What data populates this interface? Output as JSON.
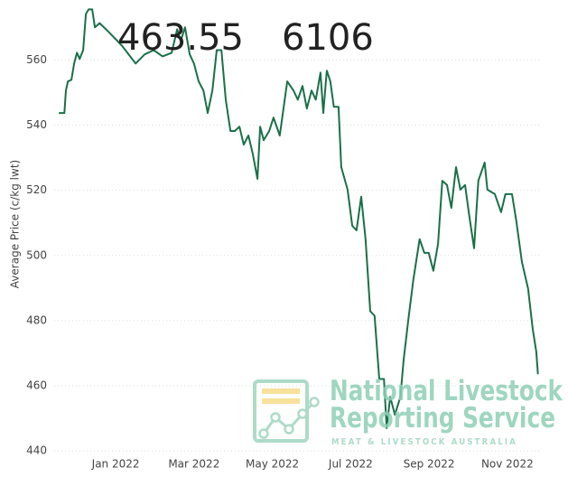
{
  "chart_data": {
    "type": "line",
    "y_label": "Average Price (c/kg lwt)",
    "annotations": [
      "463.55",
      "6106"
    ],
    "logo": {
      "title_line1": "National Livestock",
      "title_line2": "Reporting Service",
      "subtitle": "MEAT & LIVESTOCK AUSTRALIA"
    },
    "x": [
      -0.45,
      -0.31,
      -0.27,
      -0.22,
      -0.13,
      -0.06,
      0.01,
      0.08,
      0.17,
      0.24,
      0.31,
      0.4,
      0.47,
      0.59,
      0.82,
      1.16,
      1.51,
      1.74,
      1.97,
      2.2,
      2.43,
      2.57,
      2.66,
      2.77,
      2.89,
      3.0,
      3.12,
      3.24,
      3.35,
      3.47,
      3.58,
      3.7,
      3.81,
      3.93,
      4.04,
      4.16,
      4.27,
      4.39,
      4.5,
      4.62,
      4.69,
      4.78,
      4.92,
      5.03,
      5.19,
      5.38,
      5.54,
      5.65,
      5.77,
      5.88,
      6.0,
      6.11,
      6.23,
      6.3,
      6.39,
      6.48,
      6.57,
      6.69,
      6.76,
      6.92,
      7.04,
      7.15,
      7.27,
      7.38,
      7.5,
      7.61,
      7.73,
      7.85,
      7.92,
      8.01,
      8.13,
      8.27,
      8.35,
      8.47,
      8.6,
      8.76,
      8.88,
      8.99,
      9.11,
      9.23,
      9.34,
      9.46,
      9.57,
      9.69,
      9.8,
      9.92,
      10.03,
      10.15,
      10.26,
      10.42,
      10.49,
      10.68,
      10.84,
      10.95,
      11.12,
      11.23,
      11.37,
      11.53,
      11.65,
      11.74,
      11.78
    ],
    "series": [
      {
        "color": "#1a7048",
        "values": [
          543.7,
          543.7,
          550.6,
          553.4,
          553.9,
          558.9,
          562.2,
          560.3,
          563.0,
          574.1,
          575.5,
          575.5,
          570.0,
          571.3,
          568.6,
          564.4,
          558.9,
          561.7,
          563.0,
          561.1,
          562.2,
          569.4,
          565.8,
          570.0,
          561.7,
          558.9,
          553.4,
          550.6,
          543.7,
          550.6,
          563.0,
          563.0,
          547.8,
          538.2,
          538.2,
          539.5,
          534.0,
          536.8,
          531.2,
          523.5,
          539.5,
          535.4,
          538.2,
          542.3,
          536.8,
          553.4,
          550.6,
          547.8,
          552.0,
          545.1,
          550.6,
          547.8,
          556.1,
          543.7,
          556.7,
          553.4,
          545.6,
          545.6,
          527.1,
          520.2,
          509.1,
          507.7,
          518.0,
          505.0,
          482.9,
          481.5,
          462.1,
          462.1,
          447.0,
          456.6,
          451.1,
          456.6,
          467.7,
          480.1,
          492.5,
          505.0,
          500.8,
          500.8,
          495.3,
          503.6,
          522.9,
          521.6,
          514.6,
          527.1,
          520.2,
          521.6,
          511.9,
          502.2,
          522.9,
          528.5,
          520.2,
          518.8,
          513.3,
          518.8,
          518.8,
          510.5,
          498.1,
          489.8,
          477.3,
          470.4,
          463.55
        ]
      }
    ],
    "xlim": [
      -0.57,
      11.88
    ],
    "xticks": [
      {
        "value": 1,
        "label": "Jan 2022"
      },
      {
        "value": 3,
        "label": "Mar 2022"
      },
      {
        "value": 5,
        "label": "May 2022"
      },
      {
        "value": 7,
        "label": "Jul 2022"
      },
      {
        "value": 9,
        "label": "Sep 2022"
      },
      {
        "value": 11,
        "label": "Nov 2022"
      }
    ],
    "ylim": [
      437,
      577
    ],
    "yticks": [
      440,
      460,
      480,
      500,
      520,
      540,
      560
    ],
    "grid": true
  }
}
